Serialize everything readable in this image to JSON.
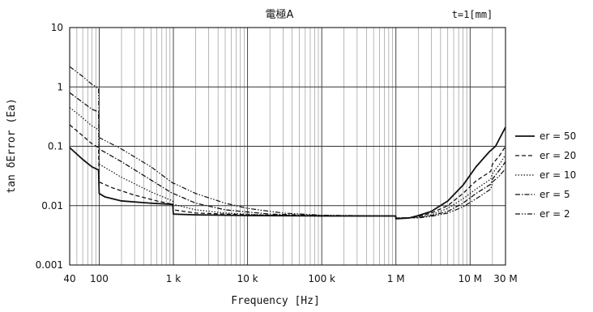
{
  "chart_data": {
    "type": "line",
    "title": "電極A",
    "annotation": "t=1[mm]",
    "xlabel": "Frequency [Hz]",
    "ylabel": "tan δError (Ea)",
    "x_scale": "log",
    "y_scale": "log",
    "xlim": [
      40,
      30000000
    ],
    "ylim": [
      0.001,
      10
    ],
    "grid": true,
    "legend_position": "right",
    "x_tick_labels": [
      {
        "value": 40,
        "label": "40"
      },
      {
        "value": 100,
        "label": "100"
      },
      {
        "value": 1000,
        "label": "1 k"
      },
      {
        "value": 10000,
        "label": "10 k"
      },
      {
        "value": 100000,
        "label": "100 k"
      },
      {
        "value": 1000000,
        "label": "1 M"
      },
      {
        "value": 10000000,
        "label": "10 M"
      },
      {
        "value": 30000000,
        "label": "30 M"
      }
    ],
    "y_tick_labels": [
      {
        "value": 10,
        "label": "10"
      },
      {
        "value": 1,
        "label": "1"
      },
      {
        "value": 0.1,
        "label": "0.1"
      },
      {
        "value": 0.01,
        "label": "0.01"
      },
      {
        "value": 0.001,
        "label": "0.001"
      }
    ],
    "series": [
      {
        "name": "er = 50",
        "dash": "solid",
        "points": [
          [
            40,
            0.095
          ],
          [
            60,
            0.06
          ],
          [
            80,
            0.045
          ],
          [
            98,
            0.04
          ],
          [
            100,
            0.016
          ],
          [
            120,
            0.014
          ],
          [
            200,
            0.012
          ],
          [
            500,
            0.011
          ],
          [
            980,
            0.0105
          ],
          [
            1000,
            0.0072
          ],
          [
            2000,
            0.007
          ],
          [
            10000,
            0.0068
          ],
          [
            100000,
            0.0067
          ],
          [
            500000,
            0.0067
          ],
          [
            990000,
            0.0067
          ],
          [
            1000000,
            0.006
          ],
          [
            1500000,
            0.0062
          ],
          [
            2000000,
            0.0068
          ],
          [
            3000000,
            0.008
          ],
          [
            5000000,
            0.012
          ],
          [
            8000000,
            0.022
          ],
          [
            12000000,
            0.045
          ],
          [
            18000000,
            0.08
          ],
          [
            22000000,
            0.1
          ],
          [
            30000000,
            0.21
          ]
        ]
      },
      {
        "name": "er = 20",
        "dash": "dashed",
        "points": [
          [
            40,
            0.23
          ],
          [
            60,
            0.15
          ],
          [
            80,
            0.11
          ],
          [
            98,
            0.095
          ],
          [
            100,
            0.025
          ],
          [
            150,
            0.02
          ],
          [
            300,
            0.015
          ],
          [
            600,
            0.012
          ],
          [
            980,
            0.0105
          ],
          [
            1000,
            0.0085
          ],
          [
            2000,
            0.0075
          ],
          [
            10000,
            0.007
          ],
          [
            100000,
            0.0067
          ],
          [
            990000,
            0.0067
          ],
          [
            1000000,
            0.0061
          ],
          [
            1500000,
            0.0062
          ],
          [
            2000000,
            0.0066
          ],
          [
            3000000,
            0.0075
          ],
          [
            5000000,
            0.01
          ],
          [
            8000000,
            0.016
          ],
          [
            12000000,
            0.026
          ],
          [
            19000000,
            0.038
          ],
          [
            20000000,
            0.05
          ],
          [
            25000000,
            0.07
          ],
          [
            30000000,
            0.1
          ]
        ]
      },
      {
        "name": "er = 10",
        "dash": "dotted",
        "points": [
          [
            40,
            0.45
          ],
          [
            60,
            0.3
          ],
          [
            80,
            0.22
          ],
          [
            98,
            0.19
          ],
          [
            100,
            0.05
          ],
          [
            200,
            0.03
          ],
          [
            500,
            0.017
          ],
          [
            980,
            0.012
          ],
          [
            1000,
            0.0105
          ],
          [
            2000,
            0.0085
          ],
          [
            5000,
            0.0075
          ],
          [
            20000,
            0.0069
          ],
          [
            100000,
            0.0067
          ],
          [
            990000,
            0.0067
          ],
          [
            1000000,
            0.0061
          ],
          [
            2000000,
            0.0064
          ],
          [
            3000000,
            0.007
          ],
          [
            5000000,
            0.009
          ],
          [
            8000000,
            0.013
          ],
          [
            12000000,
            0.019
          ],
          [
            19000000,
            0.028
          ],
          [
            20000000,
            0.035
          ],
          [
            25000000,
            0.05
          ],
          [
            30000000,
            0.072
          ]
        ]
      },
      {
        "name": "er = 5",
        "dash": "dashdot",
        "points": [
          [
            40,
            0.8
          ],
          [
            60,
            0.55
          ],
          [
            80,
            0.42
          ],
          [
            98,
            0.38
          ],
          [
            100,
            0.09
          ],
          [
            200,
            0.055
          ],
          [
            500,
            0.027
          ],
          [
            980,
            0.016
          ],
          [
            1000,
            0.016
          ],
          [
            2000,
            0.011
          ],
          [
            5000,
            0.0085
          ],
          [
            20000,
            0.0072
          ],
          [
            100000,
            0.0068
          ],
          [
            990000,
            0.0067
          ],
          [
            1000000,
            0.0062
          ],
          [
            2000000,
            0.0063
          ],
          [
            3000000,
            0.0068
          ],
          [
            5000000,
            0.008
          ],
          [
            8000000,
            0.011
          ],
          [
            12000000,
            0.016
          ],
          [
            19000000,
            0.023
          ],
          [
            20000000,
            0.028
          ],
          [
            25000000,
            0.04
          ],
          [
            30000000,
            0.055
          ]
        ]
      },
      {
        "name": "er = 2",
        "dash": "dashdotdot",
        "points": [
          [
            40,
            2.2
          ],
          [
            60,
            1.5
          ],
          [
            80,
            1.1
          ],
          [
            98,
            0.95
          ],
          [
            100,
            0.14
          ],
          [
            200,
            0.09
          ],
          [
            500,
            0.045
          ],
          [
            980,
            0.024
          ],
          [
            1000,
            0.024
          ],
          [
            2000,
            0.016
          ],
          [
            5000,
            0.011
          ],
          [
            10000,
            0.009
          ],
          [
            30000,
            0.0075
          ],
          [
            100000,
            0.0069
          ],
          [
            990000,
            0.0067
          ],
          [
            1000000,
            0.0062
          ],
          [
            2000000,
            0.0062
          ],
          [
            3000000,
            0.0066
          ],
          [
            5000000,
            0.0075
          ],
          [
            8000000,
            0.0095
          ],
          [
            12000000,
            0.013
          ],
          [
            19000000,
            0.019
          ],
          [
            20000000,
            0.025
          ],
          [
            25000000,
            0.032
          ],
          [
            30000000,
            0.042
          ]
        ]
      }
    ]
  }
}
